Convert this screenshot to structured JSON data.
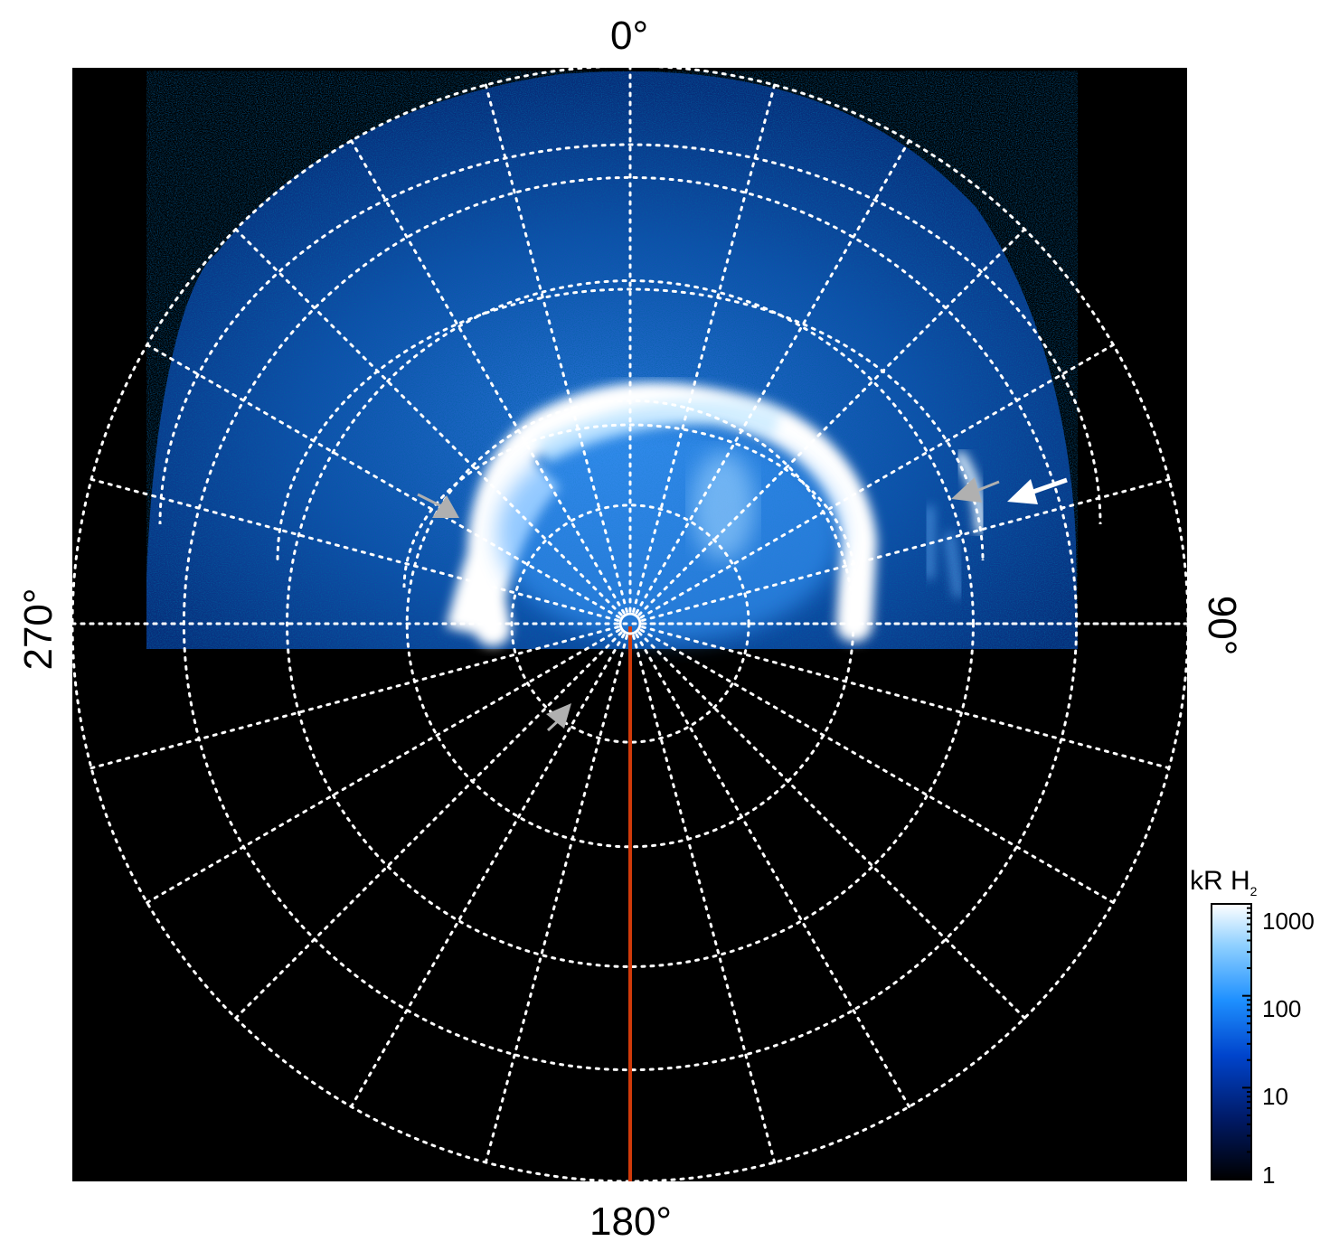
{
  "figure": {
    "azimuth_labels": {
      "top": "0°",
      "right": "90°",
      "bottom": "180°",
      "left": "270°"
    },
    "colorbar": {
      "title": "kR H",
      "title_subscript": "2",
      "scale": "log",
      "ticks": [
        "1000",
        "100",
        "10",
        "1"
      ],
      "colors": [
        "#000000",
        "#001a66",
        "#0044cc",
        "#1e90ff",
        "#8fd0ff",
        "#ffffff"
      ]
    },
    "grid": {
      "style": "dotted",
      "color": "#ffffff"
    },
    "meridian_line_color": "#d03a0a",
    "arrow_colors": {
      "white": "#ffffff",
      "grey": "#b0b0b0"
    }
  }
}
